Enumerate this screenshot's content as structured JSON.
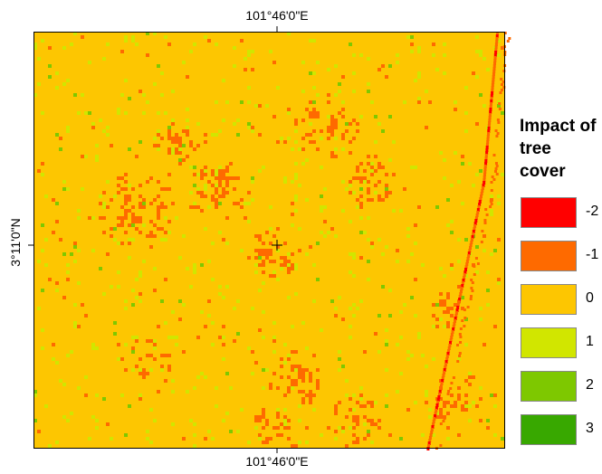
{
  "map": {
    "top_label": "101°46'0\"E",
    "bottom_label": "101°46'0\"E",
    "left_label": "3°11'0\"N",
    "legend": {
      "title": "Impact of tree cover",
      "items": [
        {
          "label": "-2",
          "color": "#ff0000"
        },
        {
          "label": "-1",
          "color": "#fe6a00"
        },
        {
          "label": "0",
          "color": "#fdc601"
        },
        {
          "label": "1",
          "color": "#d1e600"
        },
        {
          "label": "2",
          "color": "#7ec800"
        },
        {
          "label": "3",
          "color": "#38a800"
        }
      ]
    }
  }
}
